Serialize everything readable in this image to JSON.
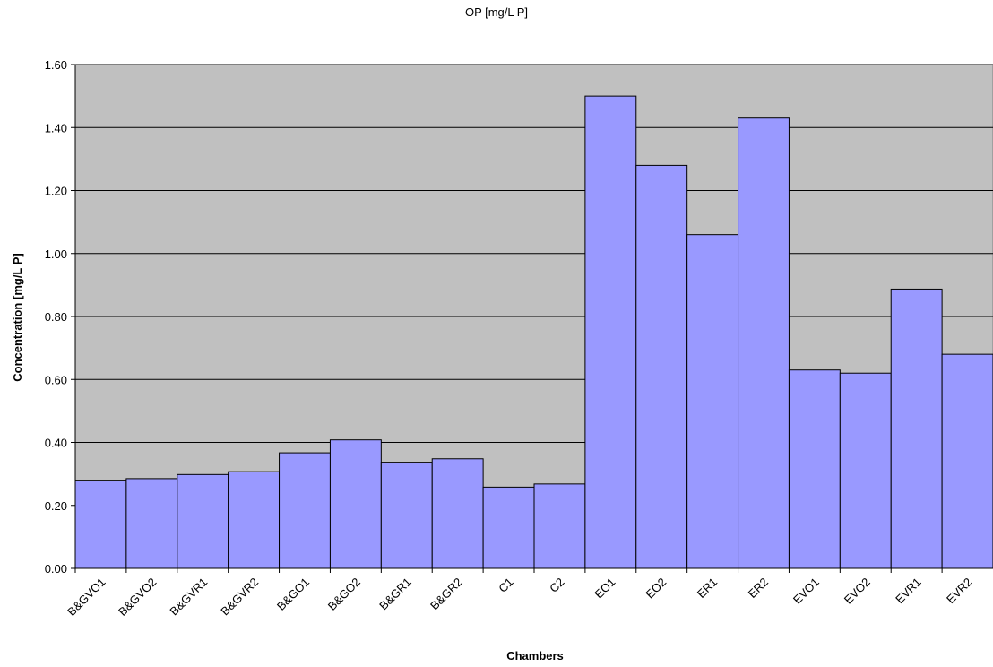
{
  "chart_data": {
    "type": "bar",
    "title": "OP [mg/L P]",
    "xlabel": "Chambers",
    "ylabel": "Concentration [mg/L P]",
    "ylim": [
      0,
      1.6
    ],
    "yticks": [
      "0.00",
      "0.20",
      "0.40",
      "0.60",
      "0.80",
      "1.00",
      "1.20",
      "1.40",
      "1.60"
    ],
    "grid": true,
    "legend": "none",
    "categories": [
      "B&GVO1",
      "B&GVO2",
      "B&GVR1",
      "B&GVR2",
      "B&GO1",
      "B&GO2",
      "B&GR1",
      "B&GR2",
      "C1",
      "C2",
      "EO1",
      "EO2",
      "ER1",
      "ER2",
      "EVO1",
      "EVO2",
      "EVR1",
      "EVR2"
    ],
    "values": [
      0.28,
      0.285,
      0.298,
      0.307,
      0.367,
      0.408,
      0.337,
      0.348,
      0.258,
      0.268,
      1.5,
      1.28,
      1.06,
      1.43,
      0.63,
      0.62,
      0.887,
      0.68
    ],
    "colors": {
      "bar_fill": "#9999ff",
      "bar_stroke": "#000000",
      "plot_background": "#c0c0c0",
      "grid": "#000000"
    }
  }
}
